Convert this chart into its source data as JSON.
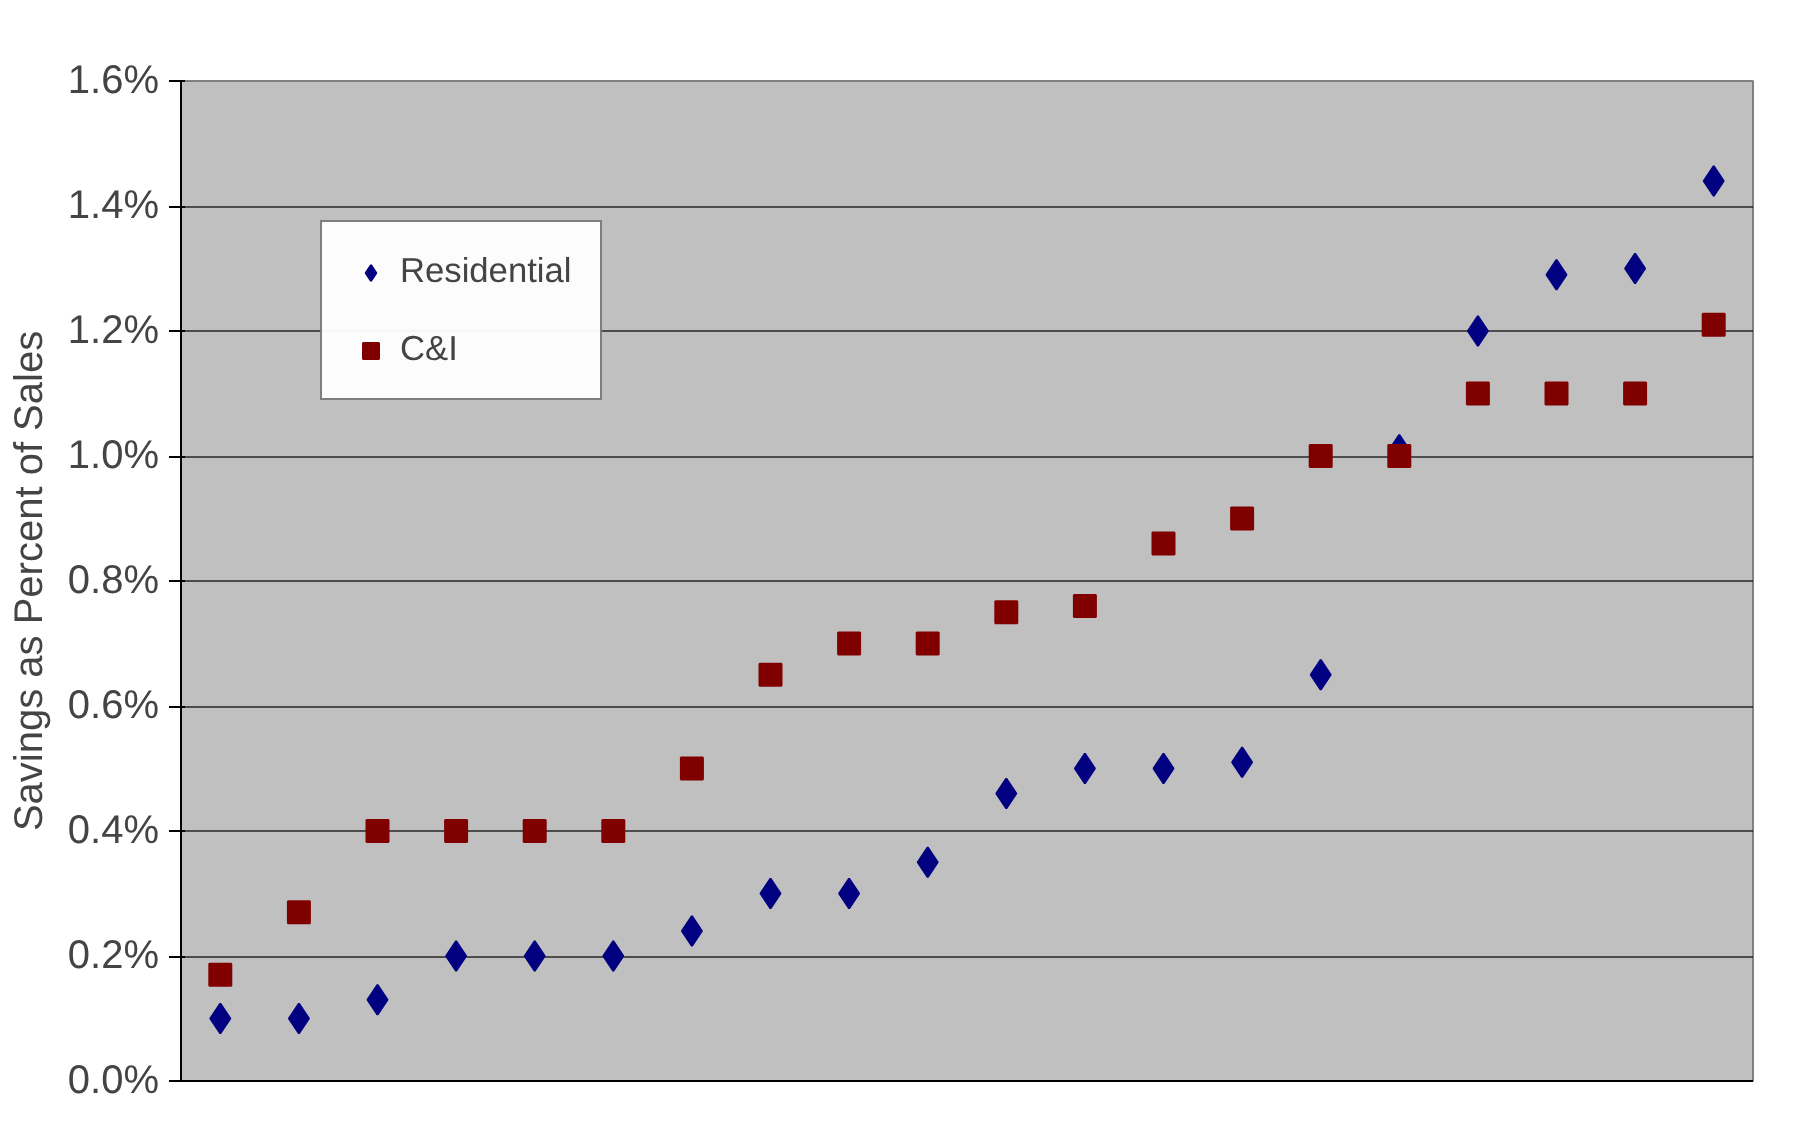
{
  "chart_data": {
    "type": "scatter",
    "ylabel": "Savings as Percent of Sales",
    "categories": [
      null,
      null,
      null,
      null,
      null,
      null,
      null,
      null,
      null,
      null,
      null,
      null,
      null,
      null,
      null,
      null,
      null,
      null,
      null,
      null
    ],
    "ylim": [
      0,
      1.6
    ],
    "yticks": [
      {
        "value": 0,
        "label": "0.0%"
      },
      {
        "value": 0.2,
        "label": "0.2%"
      },
      {
        "value": 0.4,
        "label": "0.4%"
      },
      {
        "value": 0.6,
        "label": "0.6%"
      },
      {
        "value": 0.8,
        "label": "0.8%"
      },
      {
        "value": 1.0,
        "label": "1.0%"
      },
      {
        "value": 1.2,
        "label": "1.2%"
      },
      {
        "value": 1.4,
        "label": "1.4%"
      },
      {
        "value": 1.6,
        "label": "1.6%"
      }
    ],
    "tick_labels": "y",
    "grid": "y",
    "legend": "top left",
    "series": [
      {
        "name": "Residential",
        "color": "#000080",
        "marker": "diamond",
        "values": [
          0.1,
          0.1,
          0.13,
          0.2,
          0.2,
          0.2,
          0.24,
          0.3,
          0.3,
          0.35,
          0.46,
          0.5,
          0.5,
          0.51,
          0.65,
          1.01,
          1.2,
          1.29,
          1.3,
          1.44
        ]
      },
      {
        "name": "C&I",
        "color": "#800000",
        "marker": "square",
        "values": [
          0.17,
          0.27,
          0.4,
          0.4,
          0.4,
          0.4,
          0.5,
          0.65,
          0.7,
          0.7,
          0.75,
          0.76,
          0.86,
          0.9,
          1.0,
          1.0,
          1.1,
          1.1,
          1.1,
          1.21
        ]
      }
    ]
  }
}
